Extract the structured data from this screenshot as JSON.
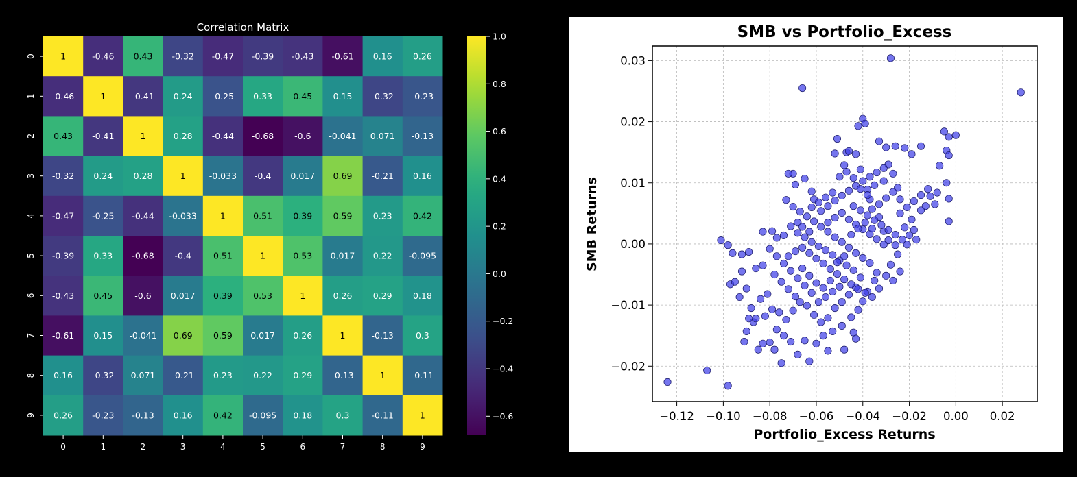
{
  "chart_data": [
    {
      "type": "heatmap",
      "title": "Correlation Matrix",
      "x_ticks": [
        "0",
        "1",
        "2",
        "3",
        "4",
        "5",
        "6",
        "7",
        "8",
        "9"
      ],
      "y_ticks": [
        "0",
        "1",
        "2",
        "3",
        "4",
        "5",
        "6",
        "7",
        "8",
        "9"
      ],
      "matrix": [
        [
          1,
          -0.46,
          0.43,
          -0.32,
          -0.47,
          -0.39,
          -0.43,
          -0.61,
          0.16,
          0.26
        ],
        [
          -0.46,
          1,
          -0.41,
          0.24,
          -0.25,
          0.33,
          0.45,
          0.15,
          -0.32,
          -0.23
        ],
        [
          0.43,
          -0.41,
          1,
          0.28,
          -0.44,
          -0.68,
          -0.6,
          -0.041,
          0.071,
          -0.13
        ],
        [
          -0.32,
          0.24,
          0.28,
          1,
          -0.033,
          -0.4,
          0.017,
          0.69,
          -0.21,
          0.16
        ],
        [
          -0.47,
          -0.25,
          -0.44,
          -0.033,
          1,
          0.51,
          0.39,
          0.59,
          0.23,
          0.42
        ],
        [
          -0.39,
          0.33,
          -0.68,
          -0.4,
          0.51,
          1,
          0.53,
          0.017,
          0.22,
          -0.095
        ],
        [
          -0.43,
          0.45,
          -0.6,
          0.017,
          0.39,
          0.53,
          1,
          0.26,
          0.29,
          0.18
        ],
        [
          -0.61,
          0.15,
          -0.041,
          0.69,
          0.59,
          0.017,
          0.26,
          1,
          -0.13,
          0.3
        ],
        [
          0.16,
          -0.32,
          0.071,
          -0.21,
          0.23,
          0.22,
          0.29,
          -0.13,
          1,
          -0.11
        ],
        [
          0.26,
          -0.23,
          -0.13,
          0.16,
          0.42,
          -0.095,
          0.18,
          0.3,
          -0.11,
          1
        ]
      ],
      "colormap": "viridis",
      "colorbar": {
        "vmin": -0.68,
        "vmax": 1.0,
        "ticks": [
          1.0,
          0.8,
          0.6,
          0.4,
          0.2,
          0.0,
          -0.2,
          -0.4,
          -0.6
        ],
        "tick_labels": [
          "1.0",
          "0.8",
          "0.6",
          "0.4",
          "0.2",
          "0.0",
          "−0.2",
          "−0.4",
          "−0.6"
        ]
      },
      "colors": {
        "background": "#000000",
        "text": "#ffffff"
      }
    },
    {
      "type": "scatter",
      "title": "SMB vs Portfolio_Excess",
      "xlabel": "Portfolio_Excess Returns",
      "ylabel": "SMB Returns",
      "xlim": [
        -0.1305,
        0.035
      ],
      "ylim": [
        -0.0258,
        0.0324
      ],
      "x_ticks": [
        -0.12,
        -0.1,
        -0.08,
        -0.06,
        -0.04,
        -0.02,
        0.0,
        0.02
      ],
      "x_tick_labels": [
        "−0.12",
        "−0.10",
        "−0.08",
        "−0.06",
        "−0.04",
        "−0.02",
        "0.00",
        "0.02"
      ],
      "y_ticks": [
        -0.02,
        -0.01,
        0.0,
        0.01,
        0.02,
        0.03
      ],
      "y_tick_labels": [
        "−0.02",
        "−0.01",
        "0.00",
        "0.01",
        "0.02",
        "0.03"
      ],
      "grid": true,
      "colors": {
        "point_fill": "#4040e8",
        "point_edge": "#1a1a66",
        "grid": "#b8b8b8"
      },
      "points": [
        [
          -0.124,
          -0.0226
        ],
        [
          -0.107,
          -0.0207
        ],
        [
          -0.098,
          -0.0232
        ],
        [
          -0.101,
          0.0006
        ],
        [
          -0.098,
          -0.0002
        ],
        [
          -0.096,
          -0.0015
        ],
        [
          -0.092,
          -0.0017
        ],
        [
          -0.089,
          -0.0013
        ],
        [
          -0.097,
          -0.0066
        ],
        [
          -0.095,
          -0.0062
        ],
        [
          -0.092,
          -0.0045
        ],
        [
          -0.09,
          -0.0073
        ],
        [
          -0.093,
          -0.0087
        ],
        [
          -0.086,
          -0.004
        ],
        [
          -0.083,
          -0.0035
        ],
        [
          -0.083,
          0.002
        ],
        [
          -0.079,
          0.0021
        ],
        [
          -0.077,
          0.001
        ],
        [
          -0.074,
          0.0014
        ],
        [
          -0.071,
          0.0029
        ],
        [
          -0.068,
          0.0035
        ],
        [
          -0.073,
          0.0072
        ],
        [
          -0.069,
          0.0097
        ],
        [
          -0.07,
          0.0115
        ],
        [
          -0.072,
          0.0115
        ],
        [
          -0.065,
          0.0107
        ],
        [
          -0.062,
          0.0086
        ],
        [
          -0.061,
          0.0073
        ],
        [
          -0.066,
          0.0255
        ],
        [
          -0.028,
          0.0304
        ],
        [
          -0.042,
          0.0193
        ],
        [
          -0.04,
          0.0205
        ],
        [
          -0.039,
          0.0197
        ],
        [
          -0.051,
          0.0172
        ],
        [
          -0.047,
          0.015
        ],
        [
          -0.048,
          0.0129
        ],
        [
          -0.052,
          0.0148
        ],
        [
          -0.046,
          0.0152
        ],
        [
          -0.043,
          0.0147
        ],
        [
          -0.041,
          0.0122
        ],
        [
          -0.033,
          0.0168
        ],
        [
          -0.03,
          0.0158
        ],
        [
          -0.026,
          0.016
        ],
        [
          -0.022,
          0.0157
        ],
        [
          -0.019,
          0.0147
        ],
        [
          -0.015,
          0.016
        ],
        [
          -0.007,
          0.0128
        ],
        [
          -0.005,
          0.0184
        ],
        [
          -0.003,
          0.0175
        ],
        [
          0.0,
          0.0178
        ],
        [
          -0.004,
          0.0153
        ],
        [
          -0.003,
          0.0145
        ],
        [
          0.028,
          0.0248
        ],
        [
          -0.004,
          0.01
        ],
        [
          -0.003,
          0.0074
        ],
        [
          -0.003,
          0.0037
        ],
        [
          -0.008,
          0.0084
        ],
        [
          -0.011,
          0.0078
        ],
        [
          -0.013,
          0.0062
        ],
        [
          -0.015,
          0.0055
        ],
        [
          -0.019,
          0.004
        ],
        [
          -0.022,
          0.0027
        ],
        [
          -0.02,
          0.0014
        ],
        [
          -0.018,
          0.0023
        ],
        [
          -0.017,
          0.0007
        ],
        [
          -0.024,
          0.0073
        ],
        [
          -0.025,
          0.0092
        ],
        [
          -0.027,
          0.0115
        ],
        [
          -0.029,
          0.013
        ],
        [
          -0.031,
          0.0103
        ],
        [
          -0.035,
          0.0096
        ],
        [
          -0.038,
          0.0089
        ],
        [
          -0.037,
          0.0073
        ],
        [
          -0.036,
          0.0057
        ],
        [
          -0.033,
          0.0044
        ],
        [
          -0.031,
          0.0021
        ],
        [
          -0.029,
          0.0006
        ],
        [
          -0.026,
          -0.0002
        ],
        [
          -0.025,
          -0.0017
        ],
        [
          -0.028,
          -0.0034
        ],
        [
          -0.03,
          -0.0052
        ],
        [
          -0.033,
          -0.0073
        ],
        [
          -0.035,
          -0.006
        ],
        [
          -0.038,
          -0.0078
        ],
        [
          -0.04,
          -0.0094
        ],
        [
          -0.042,
          -0.0108
        ],
        [
          -0.045,
          -0.012
        ],
        [
          -0.049,
          -0.0134
        ],
        [
          -0.053,
          -0.0143
        ],
        [
          -0.057,
          -0.015
        ],
        [
          -0.06,
          -0.0163
        ],
        [
          -0.065,
          -0.0158
        ],
        [
          -0.068,
          -0.0181
        ],
        [
          -0.071,
          -0.016
        ],
        [
          -0.075,
          -0.0195
        ],
        [
          -0.078,
          -0.0173
        ],
        [
          -0.08,
          -0.0161
        ],
        [
          -0.083,
          -0.0163
        ],
        [
          -0.085,
          -0.0173
        ],
        [
          -0.087,
          -0.0128
        ],
        [
          -0.082,
          -0.0118
        ],
        [
          -0.079,
          -0.0107
        ],
        [
          -0.076,
          -0.0112
        ],
        [
          -0.073,
          -0.0124
        ],
        [
          -0.07,
          -0.0109
        ],
        [
          -0.067,
          -0.0095
        ],
        [
          -0.064,
          -0.0101
        ],
        [
          -0.061,
          -0.0116
        ],
        [
          -0.058,
          -0.0128
        ],
        [
          -0.055,
          -0.0121
        ],
        [
          -0.052,
          -0.0105
        ],
        [
          -0.049,
          -0.0095
        ],
        [
          -0.046,
          -0.0083
        ],
        [
          -0.043,
          -0.0071
        ],
        [
          -0.041,
          -0.0055
        ],
        [
          -0.044,
          -0.0043
        ],
        [
          -0.047,
          -0.0035
        ],
        [
          -0.05,
          -0.0027
        ],
        [
          -0.053,
          -0.0018
        ],
        [
          -0.056,
          -0.001
        ],
        [
          -0.059,
          -0.0004
        ],
        [
          -0.062,
          0.0003
        ],
        [
          -0.065,
          0.0011
        ],
        [
          -0.068,
          0.0018
        ],
        [
          -0.066,
          -0.0006
        ],
        [
          -0.063,
          -0.0015
        ],
        [
          -0.06,
          -0.0024
        ],
        [
          -0.057,
          -0.0032
        ],
        [
          -0.054,
          -0.0041
        ],
        [
          -0.051,
          -0.0049
        ],
        [
          -0.048,
          -0.0058
        ],
        [
          -0.045,
          -0.0066
        ],
        [
          -0.042,
          -0.0074
        ],
        [
          -0.039,
          -0.008
        ],
        [
          -0.036,
          -0.0087
        ],
        [
          -0.034,
          -0.0047
        ],
        [
          -0.037,
          -0.0031
        ],
        [
          -0.04,
          -0.0023
        ],
        [
          -0.043,
          -0.0015
        ],
        [
          -0.046,
          -0.0006
        ],
        [
          -0.049,
          0.0003
        ],
        [
          -0.052,
          0.0011
        ],
        [
          -0.055,
          0.002
        ],
        [
          -0.058,
          0.0028
        ],
        [
          -0.061,
          0.0037
        ],
        [
          -0.064,
          0.0045
        ],
        [
          -0.067,
          0.0053
        ],
        [
          -0.07,
          0.0061
        ],
        [
          -0.058,
          0.0054
        ],
        [
          -0.055,
          0.0062
        ],
        [
          -0.052,
          0.0071
        ],
        [
          -0.049,
          0.0079
        ],
        [
          -0.046,
          0.0087
        ],
        [
          -0.043,
          0.0095
        ],
        [
          -0.04,
          0.0103
        ],
        [
          -0.037,
          0.011
        ],
        [
          -0.034,
          0.0117
        ],
        [
          -0.031,
          0.0124
        ],
        [
          -0.044,
          0.0062
        ],
        [
          -0.041,
          0.0055
        ],
        [
          -0.038,
          0.0047
        ],
        [
          -0.035,
          0.0039
        ],
        [
          -0.032,
          0.0031
        ],
        [
          -0.029,
          0.0023
        ],
        [
          -0.026,
          0.0015
        ],
        [
          -0.023,
          0.0007
        ],
        [
          -0.021,
          -0.0001
        ],
        [
          -0.024,
          -0.0045
        ],
        [
          -0.027,
          -0.006
        ],
        [
          -0.055,
          0.0035
        ],
        [
          -0.052,
          0.0043
        ],
        [
          -0.049,
          0.0051
        ],
        [
          -0.046,
          0.004
        ],
        [
          -0.043,
          0.0032
        ],
        [
          -0.04,
          0.0024
        ],
        [
          -0.037,
          0.0016
        ],
        [
          -0.034,
          0.0008
        ],
        [
          -0.031,
          -0.0001
        ],
        [
          -0.05,
          -0.007
        ],
        [
          -0.053,
          -0.0078
        ],
        [
          -0.056,
          -0.0087
        ],
        [
          -0.059,
          -0.0095
        ],
        [
          -0.062,
          -0.008
        ],
        [
          -0.065,
          -0.0068
        ],
        [
          -0.068,
          -0.0056
        ],
        [
          -0.071,
          -0.0044
        ],
        [
          -0.074,
          -0.0032
        ],
        [
          -0.077,
          -0.002
        ],
        [
          -0.08,
          -0.0008
        ],
        [
          -0.078,
          -0.005
        ],
        [
          -0.075,
          -0.0062
        ],
        [
          -0.072,
          -0.0074
        ],
        [
          -0.069,
          -0.0086
        ],
        [
          -0.066,
          -0.004
        ],
        [
          -0.063,
          -0.0052
        ],
        [
          -0.06,
          -0.0064
        ],
        [
          -0.057,
          -0.0072
        ],
        [
          -0.054,
          -0.006
        ],
        [
          -0.051,
          -0.003
        ],
        [
          -0.048,
          -0.002
        ],
        [
          -0.045,
          0.0015
        ],
        [
          -0.042,
          0.0025
        ],
        [
          -0.039,
          0.0035
        ],
        [
          -0.036,
          0.0025
        ],
        [
          -0.033,
          0.0065
        ],
        [
          -0.03,
          0.0075
        ],
        [
          -0.027,
          0.0085
        ],
        [
          -0.024,
          0.005
        ],
        [
          -0.021,
          0.006
        ],
        [
          -0.018,
          0.007
        ],
        [
          -0.015,
          0.008
        ],
        [
          -0.012,
          0.009
        ],
        [
          -0.009,
          0.0065
        ],
        [
          -0.05,
          0.011
        ],
        [
          -0.047,
          0.0118
        ],
        [
          -0.044,
          0.0108
        ],
        [
          -0.041,
          0.009
        ],
        [
          -0.038,
          0.008
        ],
        [
          -0.062,
          0.006
        ],
        [
          -0.059,
          0.0068
        ],
        [
          -0.056,
          0.0076
        ],
        [
          -0.053,
          0.0084
        ],
        [
          -0.072,
          -0.002
        ],
        [
          -0.069,
          -0.0012
        ],
        [
          -0.066,
          0.0028
        ],
        [
          -0.063,
          0.002
        ],
        [
          -0.084,
          -0.009
        ],
        [
          -0.081,
          -0.0082
        ],
        [
          -0.088,
          -0.0105
        ],
        [
          -0.086,
          -0.0122
        ],
        [
          -0.09,
          -0.0143
        ],
        [
          -0.091,
          -0.016
        ],
        [
          -0.089,
          -0.0122
        ],
        [
          -0.077,
          -0.014
        ],
        [
          -0.074,
          -0.015
        ],
        [
          -0.063,
          -0.0192
        ],
        [
          -0.055,
          -0.0175
        ],
        [
          -0.048,
          -0.0173
        ],
        [
          -0.044,
          -0.0145
        ],
        [
          -0.043,
          -0.0155
        ]
      ]
    }
  ]
}
